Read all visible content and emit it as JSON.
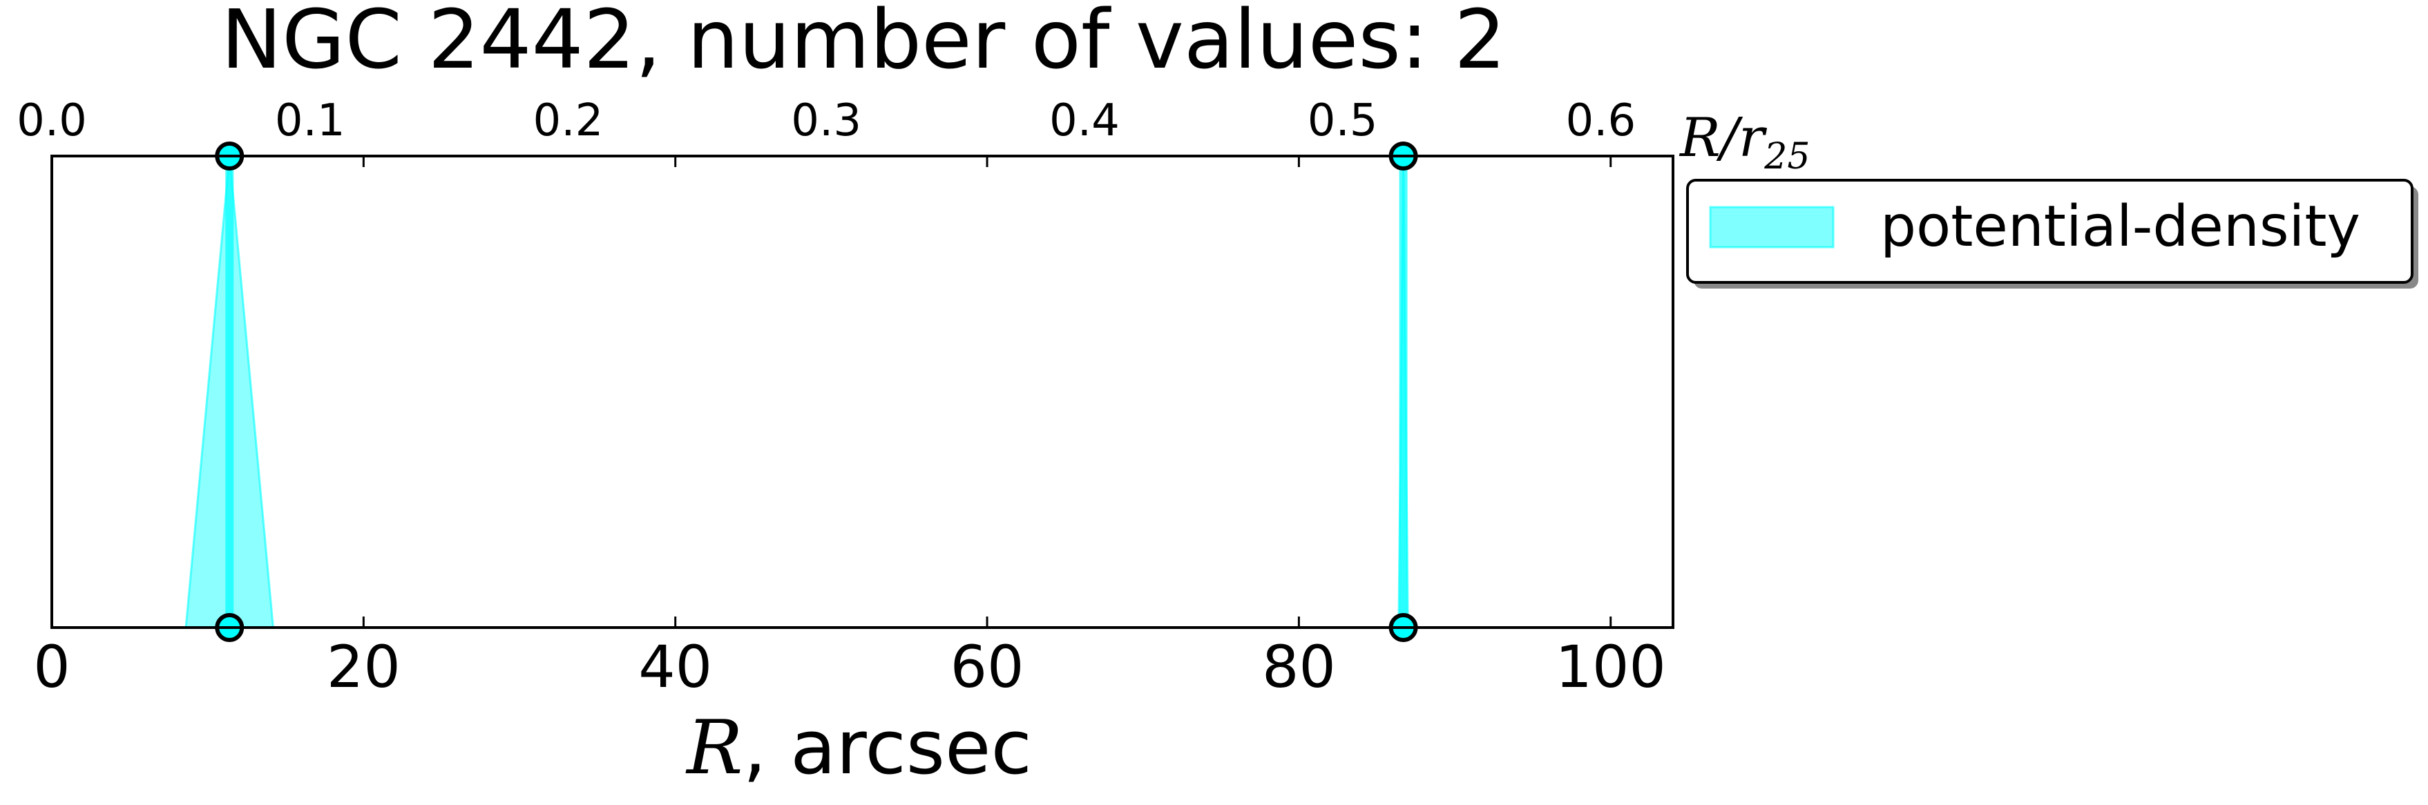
{
  "chart_data": {
    "type": "line",
    "title": "NGC 2442, number of values: 2",
    "xlabel": {
      "math": "R",
      "text": ", arcsec"
    },
    "x2label": {
      "math": "R/r",
      "sub": "25"
    },
    "ylabel": "",
    "xlim": [
      0,
      104
    ],
    "x_ticks": [
      0,
      20,
      40,
      60,
      80,
      100
    ],
    "x2lim": [
      0.0,
      0.628
    ],
    "x2_ticks": [
      0.0,
      0.1,
      0.2,
      0.3,
      0.4,
      0.5,
      0.6
    ],
    "x2_tick_labels": [
      "0.0",
      "0.1",
      "0.2",
      "0.3",
      "0.4",
      "0.5",
      "0.6"
    ],
    "y_ticks_shown": false,
    "grid": false,
    "legend": {
      "placement": "outside right, top",
      "entries": [
        "potential-density"
      ]
    },
    "series": [
      {
        "name": "potential-density",
        "color": "#00ffff",
        "values": [
          {
            "x": 11.4,
            "band": [
              8.6,
              14.2
            ]
          },
          {
            "x": 86.7,
            "band": [
              86.4,
              87.0
            ]
          }
        ]
      }
    ]
  }
}
